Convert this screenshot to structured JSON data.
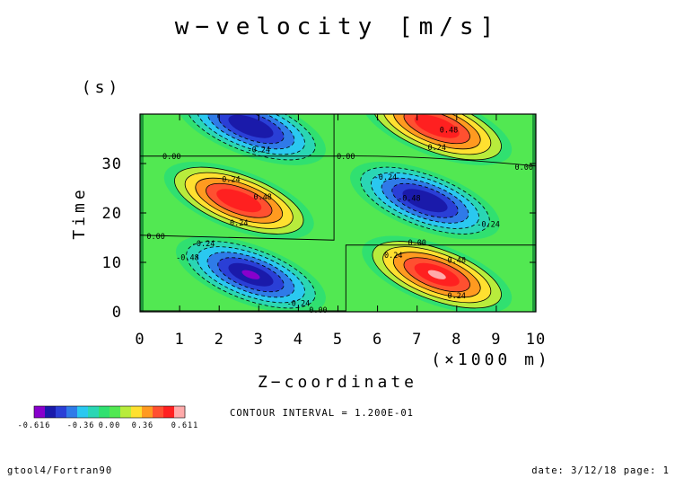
{
  "chart_data": {
    "type": "heatmap",
    "title": "w−velocity [m/s]",
    "xlabel": "Z−coordinate",
    "xunit": "(×1000 m)",
    "ylabel": "Time",
    "yunit": "(s)",
    "xlim": [
      0,
      10
    ],
    "ylim": [
      0,
      40
    ],
    "xticks": [
      "0",
      "1",
      "2",
      "3",
      "4",
      "5",
      "6",
      "7",
      "8",
      "9",
      "10"
    ],
    "yticks": [
      "0",
      "10",
      "20",
      "30"
    ],
    "contour_interval_text": "CONTOUR INTERVAL = 1.200E-01",
    "contour_labels": [
      "-0.24",
      "0.00",
      "0.24",
      "0.48",
      "-0.48"
    ],
    "colorbar": {
      "labels": [
        "-0.616",
        "-0.36",
        "0.00",
        "0.36",
        "0.611"
      ],
      "min": -0.616,
      "max": 0.611,
      "colors": [
        "#8800cc",
        "#1a1aaa",
        "#2a3fd6",
        "#2f7be8",
        "#2ac8f0",
        "#2ad6b4",
        "#30e070",
        "#52e852",
        "#b8ec3c",
        "#ffe030",
        "#ff9a20",
        "#ff5030",
        "#ff2020",
        "#ffaaaa"
      ]
    },
    "field": {
      "description_free": true,
      "cells": [
        {
          "x": 2.8,
          "y": 7.5,
          "sign": -1,
          "peak": 0.616
        },
        {
          "x": 2.5,
          "y": 22.5,
          "sign": 1,
          "peak": 0.56
        },
        {
          "x": 2.8,
          "y": 37.5,
          "sign": -1,
          "peak": 0.56
        },
        {
          "x": 7.5,
          "y": 7.5,
          "sign": 1,
          "peak": 0.611
        },
        {
          "x": 7.2,
          "y": 22.5,
          "sign": -1,
          "peak": 0.56
        },
        {
          "x": 7.5,
          "y": 37.5,
          "sign": 1,
          "peak": 0.56
        }
      ]
    }
  },
  "footer": {
    "left": "gtool4/Fortran90",
    "right": "date: 3/12/18 page: 1"
  }
}
